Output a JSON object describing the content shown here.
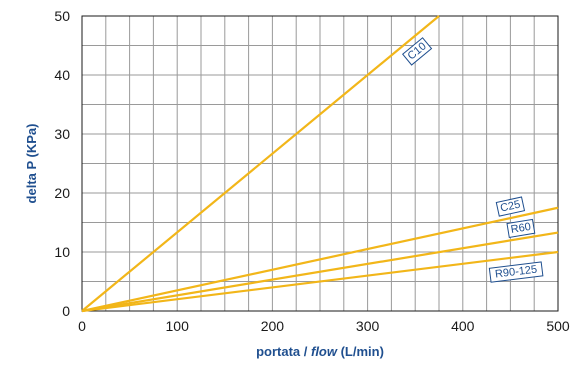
{
  "chart_data": {
    "type": "line",
    "title": "",
    "xlabel_parts": [
      "portata / ",
      "flow",
      " (L/min)"
    ],
    "ylabel": "delta P (KPa)",
    "xlim": [
      0,
      500
    ],
    "ylim": [
      0,
      50
    ],
    "x_major_ticks": [
      0,
      100,
      200,
      300,
      400,
      500
    ],
    "x_tick_labels": [
      "0",
      "100",
      "200",
      "300",
      "400",
      "500"
    ],
    "y_major_ticks": [
      0,
      10,
      20,
      30,
      40,
      50
    ],
    "y_tick_labels": [
      "0",
      "10",
      "20",
      "30",
      "40",
      "50"
    ],
    "grid": true,
    "grid_x_step": 25,
    "grid_y_step": 5,
    "line_color": "#f2b619",
    "grid_color": "#9a9a9a",
    "label_color": "#1f4f8f",
    "series": [
      {
        "name": "C10",
        "x": [
          0,
          375
        ],
        "y": [
          0,
          50
        ],
        "label_at": [
          352,
          44
        ]
      },
      {
        "name": "C25",
        "x": [
          0,
          500
        ],
        "y": [
          0,
          17.5
        ],
        "label_at": [
          450,
          17.7
        ]
      },
      {
        "name": "R60",
        "x": [
          0,
          500
        ],
        "y": [
          0,
          13.3
        ],
        "label_at": [
          461,
          14
        ]
      },
      {
        "name": "R90-125",
        "x": [
          0,
          500
        ],
        "y": [
          0,
          10
        ],
        "label_at": [
          456,
          6.6
        ]
      }
    ]
  }
}
